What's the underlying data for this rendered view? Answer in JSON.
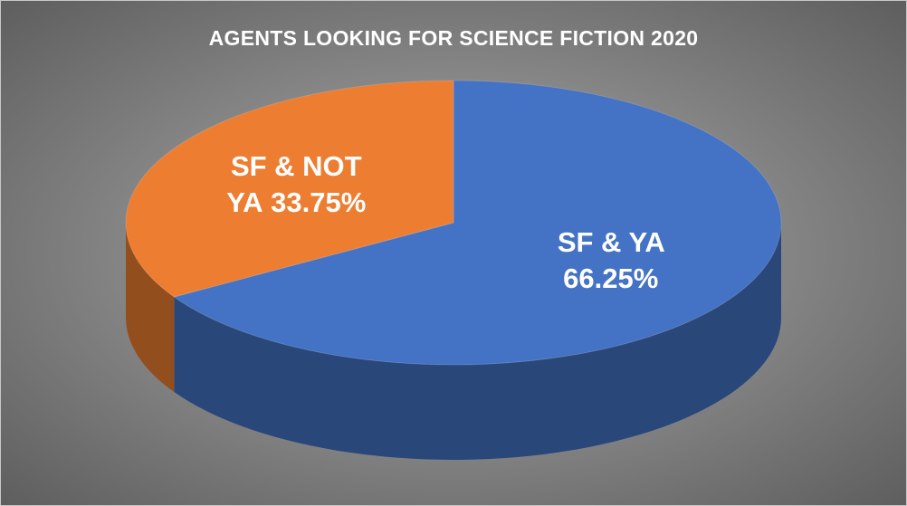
{
  "chart_data": {
    "type": "pie",
    "title": "AGENTS LOOKING FOR SCIENCE FICTION 2020",
    "categories": [
      "SF & YA",
      "SF & NOT YA"
    ],
    "values": [
      66.25,
      33.75
    ],
    "value_labels": [
      "66.25%",
      "33.75%"
    ],
    "colors": [
      "#4472c4",
      "#ed7d31"
    ]
  }
}
